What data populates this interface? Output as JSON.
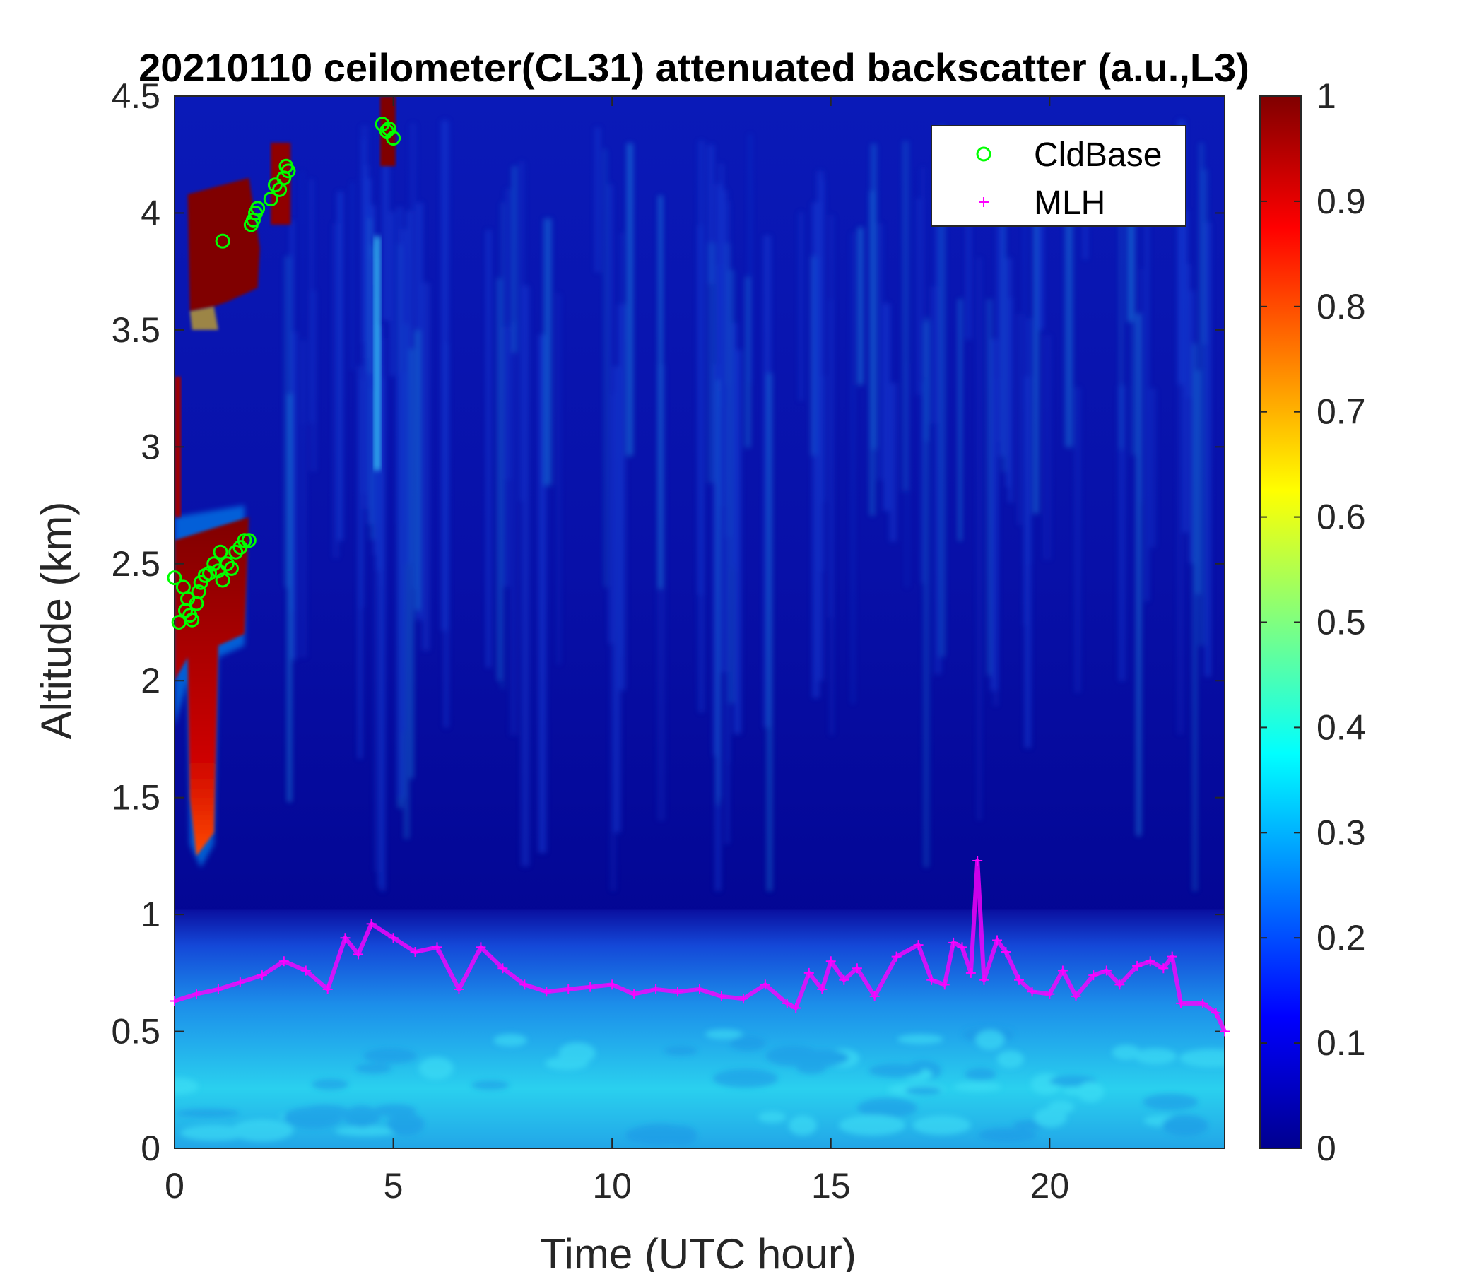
{
  "chart_data": {
    "type": "heatmap",
    "title": "20210110 ceilometer(CL31) attenuated backscatter (a.u.,L3)",
    "xlabel": "Time (UTC hour)",
    "ylabel": "Altitude (km)",
    "xlim": [
      0,
      24
    ],
    "ylim": [
      0,
      4.5
    ],
    "x_ticks": [
      "0",
      "5",
      "10",
      "15",
      "20"
    ],
    "y_ticks": [
      "0",
      "0.5",
      "1",
      "1.5",
      "2",
      "2.5",
      "3",
      "3.5",
      "4",
      "4.5"
    ],
    "colorbar": {
      "colormap": "jet",
      "range": [
        0,
        1
      ],
      "ticks": [
        "0",
        "0.1",
        "0.2",
        "0.3",
        "0.4",
        "0.5",
        "0.6",
        "0.7",
        "0.8",
        "0.9",
        "1"
      ]
    },
    "legend": {
      "position": "top-right",
      "entries": [
        {
          "name": "CldBase",
          "marker": "circle",
          "color": "#00ff00"
        },
        {
          "name": "MLH",
          "marker": "plus",
          "color": "#ff00ff"
        }
      ]
    },
    "heatmap_regions": [
      {
        "desc": "surface layer",
        "x": [
          0,
          24
        ],
        "y": [
          0,
          1.0
        ],
        "value": 0.3
      },
      {
        "desc": "cloud upper",
        "x": [
          0.3,
          1.9
        ],
        "y": [
          3.6,
          4.1
        ],
        "value": 1.0
      },
      {
        "desc": "cloud middle",
        "x": [
          0,
          1.6
        ],
        "y": [
          2.1,
          2.7
        ],
        "value": 1.0
      },
      {
        "desc": "precipitation streak",
        "x": [
          0.3,
          1.0
        ],
        "y": [
          1.2,
          2.4
        ],
        "value": 0.9
      }
    ],
    "series": [
      {
        "name": "CldBase",
        "x": [
          0.0,
          0.1,
          0.2,
          0.25,
          0.3,
          0.35,
          0.4,
          0.5,
          0.55,
          0.6,
          0.7,
          0.8,
          0.9,
          1.0,
          1.05,
          1.1,
          1.2,
          1.3,
          1.4,
          1.5,
          1.6,
          1.7,
          1.1,
          1.75,
          1.8,
          1.85,
          1.9,
          2.2,
          2.3,
          2.4,
          2.5,
          2.55,
          2.6,
          4.75,
          4.85,
          4.9,
          5.0
        ],
        "y": [
          2.44,
          2.25,
          2.4,
          2.3,
          2.35,
          2.28,
          2.26,
          2.33,
          2.38,
          2.42,
          2.45,
          2.46,
          2.5,
          2.47,
          2.55,
          2.43,
          2.5,
          2.48,
          2.55,
          2.57,
          2.6,
          2.6,
          3.88,
          3.95,
          3.97,
          4.0,
          4.02,
          4.06,
          4.12,
          4.1,
          4.15,
          4.2,
          4.18,
          4.38,
          4.35,
          4.36,
          4.32
        ]
      },
      {
        "name": "MLH",
        "x": [
          0.0,
          0.5,
          1.0,
          1.5,
          2.0,
          2.5,
          3.0,
          3.5,
          3.9,
          4.2,
          4.5,
          5.0,
          5.5,
          6.0,
          6.5,
          7.0,
          7.5,
          8.0,
          8.5,
          9.0,
          9.5,
          10.0,
          10.5,
          11.0,
          11.5,
          12.0,
          12.5,
          13.0,
          13.5,
          14.0,
          14.2,
          14.5,
          14.8,
          15.0,
          15.3,
          15.6,
          16.0,
          16.5,
          17.0,
          17.3,
          17.6,
          17.8,
          18.0,
          18.2,
          18.35,
          18.5,
          18.8,
          19.0,
          19.3,
          19.6,
          20.0,
          20.3,
          20.6,
          21.0,
          21.3,
          21.6,
          22.0,
          22.3,
          22.6,
          22.8,
          23.0,
          23.5,
          23.8,
          24.0
        ],
        "y": [
          0.63,
          0.66,
          0.68,
          0.71,
          0.74,
          0.8,
          0.76,
          0.68,
          0.9,
          0.83,
          0.96,
          0.9,
          0.84,
          0.86,
          0.68,
          0.86,
          0.77,
          0.7,
          0.67,
          0.68,
          0.69,
          0.7,
          0.66,
          0.68,
          0.67,
          0.68,
          0.65,
          0.64,
          0.7,
          0.62,
          0.6,
          0.75,
          0.68,
          0.8,
          0.72,
          0.77,
          0.65,
          0.82,
          0.87,
          0.72,
          0.7,
          0.88,
          0.86,
          0.75,
          1.23,
          0.72,
          0.89,
          0.84,
          0.72,
          0.67,
          0.66,
          0.76,
          0.65,
          0.74,
          0.76,
          0.7,
          0.78,
          0.8,
          0.77,
          0.82,
          0.62,
          0.62,
          0.58,
          0.5
        ]
      }
    ]
  }
}
